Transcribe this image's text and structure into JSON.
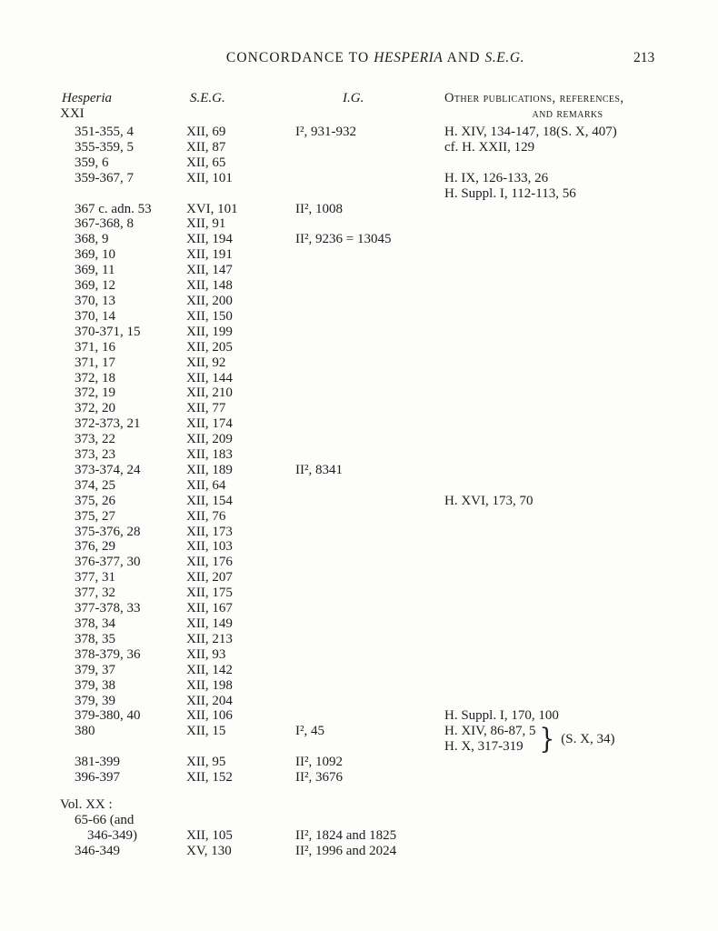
{
  "header": {
    "title_pre": "CONCORDANCE TO",
    "title_journal": "HESPERIA",
    "title_mid": "AND",
    "title_seg": "S.E.G.",
    "page_number": "213"
  },
  "columns": {
    "hesperia": "Hesperia",
    "volume": "XXI",
    "seg": "S.E.G.",
    "ig": "I.G.",
    "other_line1": "Other publications, references,",
    "other_line2": "and remarks"
  },
  "table": {
    "rows": [
      {
        "h": "351-355, 4",
        "seg": "XII, 69",
        "ig": "I², 931-932",
        "other": "H. XIV, 134-147, 18(S. X, 407)"
      },
      {
        "h": "355-359, 5",
        "seg": "XII, 87",
        "other": "cf. H. XXII, 129"
      },
      {
        "h": "359, 6",
        "seg": "XII, 65"
      },
      {
        "h": "359-367, 7",
        "seg": "XII, 101",
        "other": "H. IX, 126-133, 26"
      },
      {
        "other": "H. Suppl. I, 112-113, 56"
      },
      {
        "h": "367 c. adn. 53",
        "seg": "XVI, 101",
        "ig": "II², 1008"
      },
      {
        "h": "367-368, 8",
        "seg": "XII, 91"
      },
      {
        "h": "368, 9",
        "seg": "XII, 194",
        "ig": "II², 9236 = 13045"
      },
      {
        "h": "369, 10",
        "seg": "XII, 191"
      },
      {
        "h": "369, 11",
        "seg": "XII, 147"
      },
      {
        "h": "369, 12",
        "seg": "XII, 148"
      },
      {
        "h": "370, 13",
        "seg": "XII, 200"
      },
      {
        "h": "370, 14",
        "seg": "XII, 150"
      },
      {
        "h": "370-371, 15",
        "seg": "XII, 199"
      },
      {
        "h": "371, 16",
        "seg": "XII, 205"
      },
      {
        "h": "371, 17",
        "seg": "XII, 92"
      },
      {
        "h": "372, 18",
        "seg": "XII, 144"
      },
      {
        "h": "372, 19",
        "seg": "XII, 210"
      },
      {
        "h": "372, 20",
        "seg": "XII, 77"
      },
      {
        "h": "372-373, 21",
        "seg": "XII, 174"
      },
      {
        "h": "373, 22",
        "seg": "XII, 209"
      },
      {
        "h": "373, 23",
        "seg": "XII, 183"
      },
      {
        "h": "373-374, 24",
        "seg": "XII, 189",
        "ig": "II², 8341"
      },
      {
        "h": "374, 25",
        "seg": "XII, 64"
      },
      {
        "h": "375, 26",
        "seg": "XII, 154",
        "other": "H. XVI, 173, 70"
      },
      {
        "h": "375, 27",
        "seg": "XII, 76"
      },
      {
        "h": "375-376, 28",
        "seg": "XII, 173"
      },
      {
        "h": "376, 29",
        "seg": "XII, 103"
      },
      {
        "h": "376-377, 30",
        "seg": "XII, 176"
      },
      {
        "h": "377, 31",
        "seg": "XII, 207"
      },
      {
        "h": "377, 32",
        "seg": "XII, 175"
      },
      {
        "h": "377-378, 33",
        "seg": "XII, 167"
      },
      {
        "h": "378, 34",
        "seg": "XII, 149"
      },
      {
        "h": "378, 35",
        "seg": "XII, 213"
      },
      {
        "h": "378-379, 36",
        "seg": "XII, 93"
      },
      {
        "h": "379, 37",
        "seg": "XII, 142"
      },
      {
        "h": "379, 38",
        "seg": "XII, 198"
      },
      {
        "h": "379, 39",
        "seg": "XII, 204"
      },
      {
        "h": "379-380, 40",
        "seg": "XII, 106",
        "other": "H. Suppl. I, 170, 100"
      },
      {
        "type": "brace",
        "h": "380",
        "seg": "XII, 15",
        "ig": "I², 45",
        "other1": "H. XIV, 86-87, 5",
        "other2": "H. X, 317-319",
        "label": "(S. X, 34)"
      },
      {
        "h": "381-399",
        "seg": "XII, 95",
        "ig": "II², 1092"
      },
      {
        "h": "396-397",
        "seg": "XII, 152",
        "ig": "II², 3676"
      },
      {
        "type": "gap",
        "px": 13
      },
      {
        "h": "Vol. XX :",
        "indent": 0
      },
      {
        "h": "65-66 (and"
      },
      {
        "h": "346-349)",
        "indent": 2,
        "seg": "XII, 105",
        "ig": "II², 1824 and 1825"
      },
      {
        "h": "346-349",
        "seg": "XV, 130",
        "ig": "II², 1996 and 2024"
      }
    ]
  }
}
